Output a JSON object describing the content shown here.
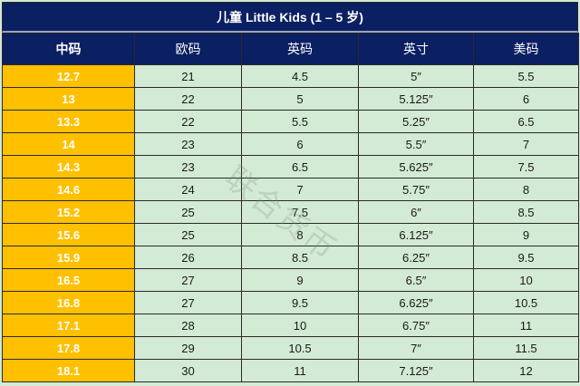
{
  "table": {
    "title": "儿童 Little Kids (1 – 5 岁)",
    "headers": [
      "中码",
      "欧码",
      "英码",
      "英寸",
      "美码"
    ],
    "rows": [
      [
        "12.7",
        "21",
        "4.5",
        "5″",
        "5.5"
      ],
      [
        "13",
        "22",
        "5",
        "5.125″",
        "6"
      ],
      [
        "13.3",
        "22",
        "5.5",
        "5.25″",
        "6.5"
      ],
      [
        "14",
        "23",
        "6",
        "5.5″",
        "7"
      ],
      [
        "14.3",
        "23",
        "6.5",
        "5.625″",
        "7.5"
      ],
      [
        "14.6",
        "24",
        "7",
        "5.75″",
        "8"
      ],
      [
        "15.2",
        "25",
        "7.5",
        "6″",
        "8.5"
      ],
      [
        "15.6",
        "25",
        "8",
        "6.125″",
        "9"
      ],
      [
        "15.9",
        "26",
        "8.5",
        "6.25″",
        "9.5"
      ],
      [
        "16.5",
        "27",
        "9",
        "6.5″",
        "10"
      ],
      [
        "16.8",
        "27",
        "9.5",
        "6.625″",
        "10.5"
      ],
      [
        "17.1",
        "28",
        "10",
        "6.75″",
        "11"
      ],
      [
        "17.8",
        "29",
        "10.5",
        "7″",
        "11.5"
      ],
      [
        "18.1",
        "30",
        "11",
        "7.125″",
        "12"
      ]
    ]
  },
  "watermark": "联合货币",
  "colors": {
    "header_bg": "#0b1f63",
    "first_col_bg": "#ffc000",
    "cell_bg": "#d3ead4"
  }
}
